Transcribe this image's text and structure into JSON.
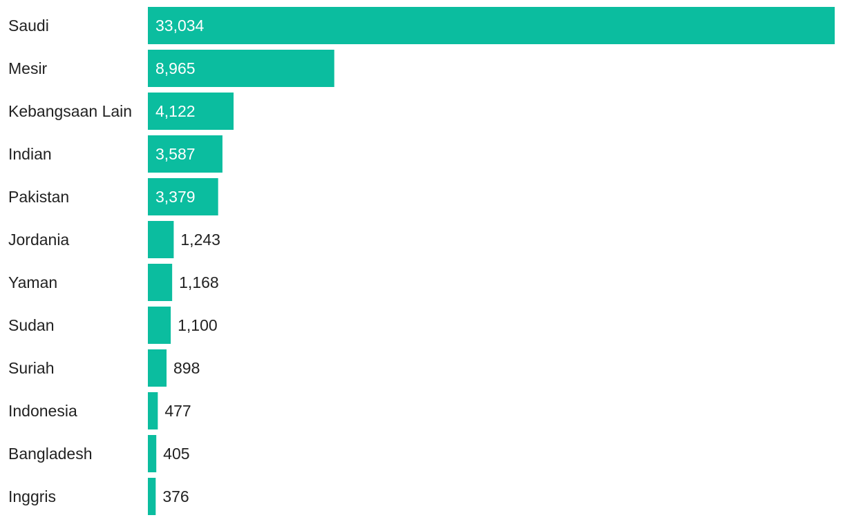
{
  "chart_data": {
    "type": "bar",
    "orientation": "horizontal",
    "title": "",
    "xlabel": "",
    "ylabel": "",
    "categories": [
      "Saudi",
      "Mesir",
      "Kebangsaan Lain",
      "Indian",
      "Pakistan",
      "Jordania",
      "Yaman",
      "Sudan",
      "Suriah",
      "Indonesia",
      "Bangladesh",
      "Inggris"
    ],
    "values": [
      33034,
      8965,
      4122,
      3587,
      3379,
      1243,
      1168,
      1100,
      898,
      477,
      405,
      376
    ],
    "value_labels": [
      "33,034",
      "8,965",
      "4,122",
      "3,587",
      "3,379",
      "1,243",
      "1,168",
      "1,100",
      "898",
      "477",
      "405",
      "376"
    ],
    "xlim": [
      0,
      33034
    ],
    "grid": false,
    "legend": "none",
    "colors": {
      "bar": "#0bbd9f",
      "label_inside": "#ffffff",
      "label_outside": "#222222",
      "category_text": "#222222"
    }
  }
}
